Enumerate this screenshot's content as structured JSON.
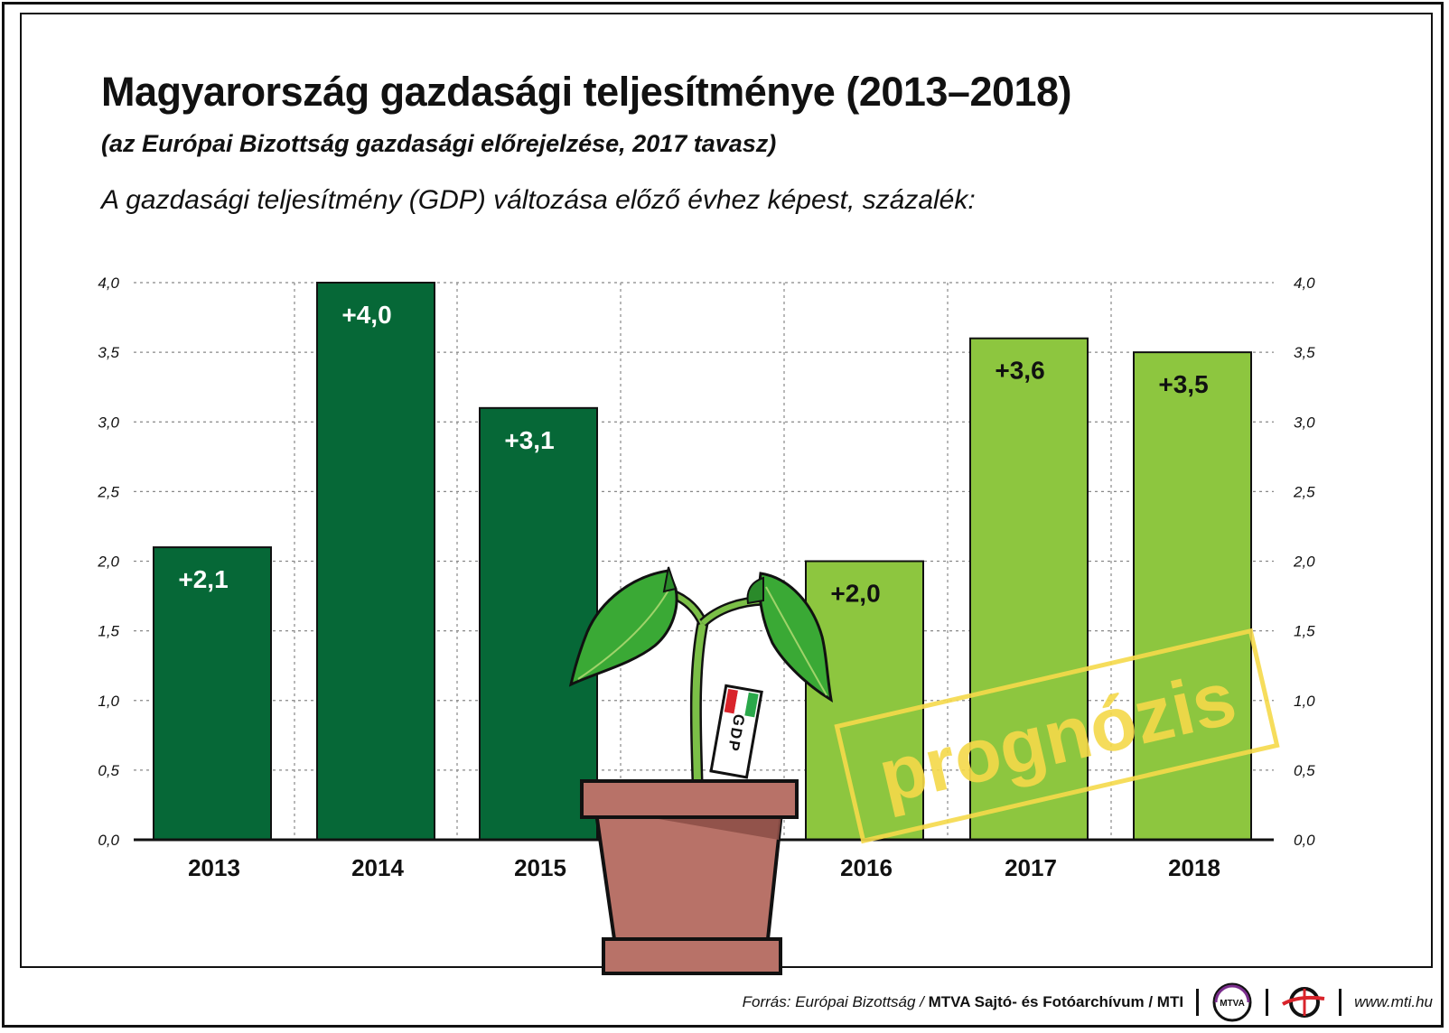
{
  "header": {
    "title": "Magyarország gazdasági teljesítménye (2013–2018)",
    "subtitle": "(az Európai Bizottság gazdasági előrejelzése, 2017 tavasz)",
    "lead": "A gazdasági teljesítmény (GDP) változása előző évhez képest, százalék:"
  },
  "chart_data": {
    "type": "bar",
    "categories": [
      "2013",
      "2014",
      "2015",
      "2016",
      "2017",
      "2018"
    ],
    "values": [
      2.1,
      4.0,
      3.1,
      2.0,
      3.6,
      3.5
    ],
    "value_labels": [
      "+2,1",
      "+4,0",
      "+3,1",
      "+2,0",
      "+3,6",
      "+3,5"
    ],
    "colors": [
      "#066837",
      "#066837",
      "#066837",
      "#8dc63f",
      "#8dc63f",
      "#8dc63f"
    ],
    "label_colors": [
      "#ffffff",
      "#ffffff",
      "#ffffff",
      "#111111",
      "#111111",
      "#111111"
    ],
    "ylim": [
      0,
      4.0
    ],
    "yticks": [
      0.0,
      0.5,
      1.0,
      1.5,
      2.0,
      2.5,
      3.0,
      3.5,
      4.0
    ],
    "ytick_labels": [
      "0,0",
      "0,5",
      "1,0",
      "1,5",
      "2,0",
      "2,5",
      "3,0",
      "3,5",
      "4,0"
    ],
    "grid": "dotted",
    "axis_side": "both",
    "stamp": "prognózis",
    "stamp_color": "#f5d94a",
    "illustration": {
      "type": "plant-in-pot",
      "tag_text": "GDP",
      "pot_color": "#b87268",
      "leaf_color": "#3aa935"
    }
  },
  "footer": {
    "source_prefix": "Forrás: Európai Bizottság /",
    "source_bold": "MTVA Sajtó- és Fotóarchívum",
    "source_suffix": "/ MTI",
    "logo1": "MTVA",
    "website": "www.mti.hu"
  }
}
